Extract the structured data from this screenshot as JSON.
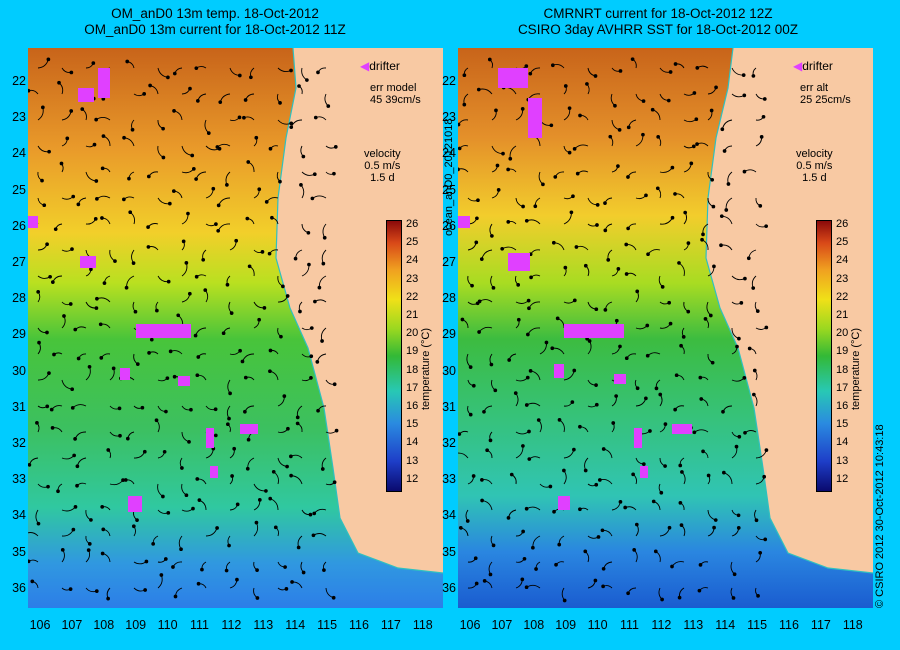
{
  "left_panel": {
    "title_line1": "OM_anD0 13m temp. 18-Oct-2012",
    "title_line2": "OM_anD0 13m current for 18-Oct-2012 11Z",
    "drifter": "drifter",
    "err_label": "err model",
    "err_value": "45 39cm/s",
    "velocity_label": "velocity",
    "velocity_scale": "0.5 m/s",
    "velocity_time": "1.5 d"
  },
  "right_panel": {
    "title_line1": "CMRNRT current for 18-Oct-2012 12Z",
    "title_line2": "CSIRO 3day AVHRR SST for 18-Oct-2012 00Z",
    "drifter": "drifter",
    "err_label": "err alt",
    "err_value": "25 25cm/s",
    "velocity_label": "velocity",
    "velocity_scale": "0.5 m/s",
    "velocity_time": "1.5 d"
  },
  "colorbar": {
    "label": "temperature (°C)",
    "ticks": [
      "26",
      "25",
      "24",
      "23",
      "22",
      "21",
      "20",
      "19",
      "18",
      "17",
      "16",
      "15",
      "14",
      "13",
      "12"
    ]
  },
  "latitudes": [
    "22",
    "23",
    "24",
    "25",
    "26",
    "27",
    "28",
    "29",
    "30",
    "31",
    "32",
    "33",
    "34",
    "35",
    "36"
  ],
  "longitudes": [
    "106",
    "107",
    "108",
    "109",
    "110",
    "111",
    "112",
    "113",
    "114",
    "115",
    "116",
    "117",
    "118"
  ],
  "side_left": "ocean_anD0_20121018",
  "side_right": "© CSIRO 2012 30-Oct-2012 10:43:18",
  "colors": {
    "background": "#00ccff",
    "land": "#f8c9a3",
    "drifter": "#e040ff",
    "coast_line": "#30c0c0"
  }
}
